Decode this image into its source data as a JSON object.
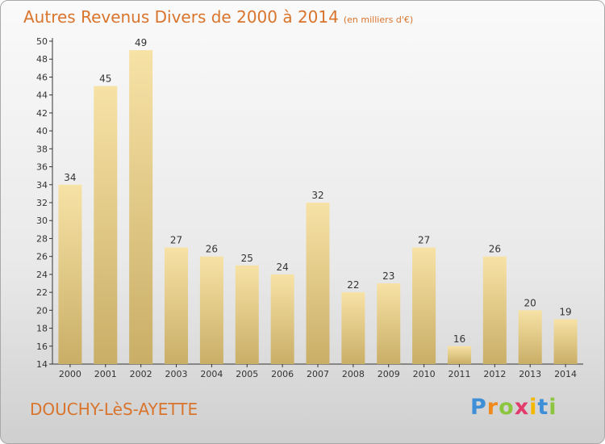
{
  "title": "Autres Revenus Divers de 2000 à 2014",
  "subtitle": "(en milliers d'€)",
  "location": "DOUCHY-LèS-AYETTE",
  "logo": {
    "text": "Proxiti",
    "letters": [
      {
        "ch": "P",
        "color": "#3e8fd8"
      },
      {
        "ch": "r",
        "color": "#f08a1c"
      },
      {
        "ch": "o",
        "color": "#8cc63f"
      },
      {
        "ch": "x",
        "color": "#e23a6b"
      },
      {
        "ch": "i",
        "color": "#f5b800"
      },
      {
        "ch": "t",
        "color": "#3e8fd8"
      },
      {
        "ch": "i",
        "color": "#8cc63f"
      }
    ]
  },
  "colors": {
    "bar_light": "#f7e2a6",
    "bar_dark": "#c9ae66",
    "text": "#333333",
    "accent": "#d9742c"
  },
  "chart_data": {
    "type": "bar",
    "categories": [
      "2000",
      "2001",
      "2002",
      "2003",
      "2004",
      "2005",
      "2006",
      "2007",
      "2008",
      "2009",
      "2010",
      "2011",
      "2012",
      "2013",
      "2014"
    ],
    "values": [
      34,
      45,
      49,
      27,
      26,
      25,
      24,
      32,
      22,
      23,
      27,
      16,
      26,
      20,
      19
    ],
    "ylim": [
      14,
      50
    ],
    "yticks": [
      14,
      16,
      18,
      20,
      22,
      24,
      26,
      28,
      30,
      32,
      34,
      36,
      38,
      40,
      42,
      44,
      46,
      48,
      50
    ],
    "grid": false
  }
}
